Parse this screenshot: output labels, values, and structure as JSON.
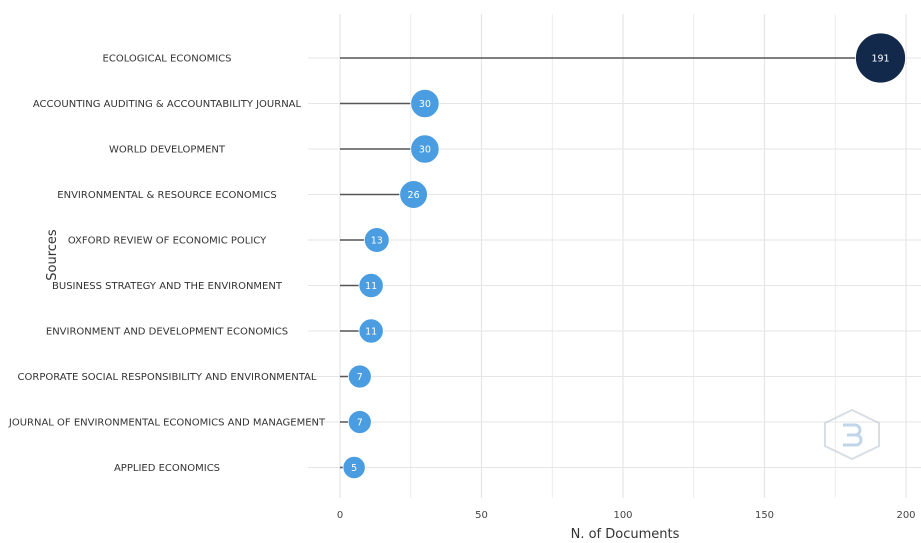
{
  "chart_data": {
    "type": "lollipop",
    "xlabel": "N. of Documents",
    "ylabel": "Sources",
    "xlim": [
      0,
      200
    ],
    "xticks": [
      0,
      50,
      100,
      150,
      200
    ],
    "grid": true,
    "categories": [
      "ECOLOGICAL ECONOMICS",
      "ACCOUNTING AUDITING & ACCOUNTABILITY JOURNAL",
      "WORLD DEVELOPMENT",
      "ENVIRONMENTAL & RESOURCE ECONOMICS",
      "OXFORD REVIEW OF ECONOMIC POLICY",
      "BUSINESS STRATEGY AND THE ENVIRONMENT",
      "ENVIRONMENT AND DEVELOPMENT ECONOMICS",
      "CORPORATE SOCIAL RESPONSIBILITY AND ENVIRONMENTAL",
      "JOURNAL OF ENVIRONMENTAL ECONOMICS AND MANAGEMENT",
      "APPLIED ECONOMICS"
    ],
    "values": [
      191,
      30,
      30,
      26,
      13,
      11,
      11,
      7,
      7,
      5
    ],
    "colors": {
      "max_point": "#13294b",
      "point": "#4a9de0",
      "stem": "#555555",
      "grid": "#e6e6e6"
    }
  }
}
